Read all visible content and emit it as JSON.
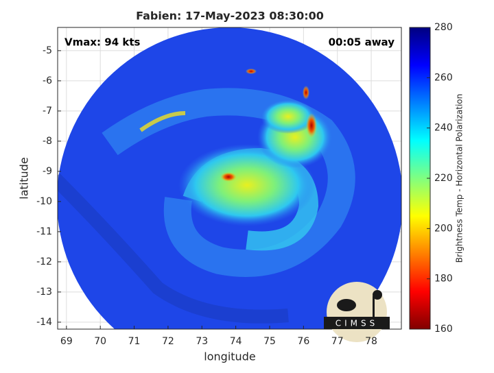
{
  "chart_data": {
    "type": "image",
    "title": "Fabien: 17-May-2023 08:30:00",
    "annotations": [
      "Vmax: 94 kts",
      "00:05 away"
    ],
    "xlabel": "longitude",
    "ylabel": "latitude",
    "xlim": [
      68.74,
      78.89
    ],
    "xticks": [
      69,
      70,
      71,
      72,
      73,
      74,
      75,
      76,
      77,
      78
    ],
    "ylim": [
      -14.23,
      -4.23
    ],
    "yticks": [
      -5,
      -6,
      -7,
      -8,
      -9,
      -10,
      -11,
      -12,
      -13,
      -14
    ],
    "grid": true,
    "colorbar": {
      "label": "Brightness Temp - Horizontal Polarization",
      "lim": [
        160,
        280
      ],
      "ticks": [
        160,
        180,
        200,
        220,
        240,
        260,
        280
      ]
    },
    "logo": "CIMSS"
  }
}
